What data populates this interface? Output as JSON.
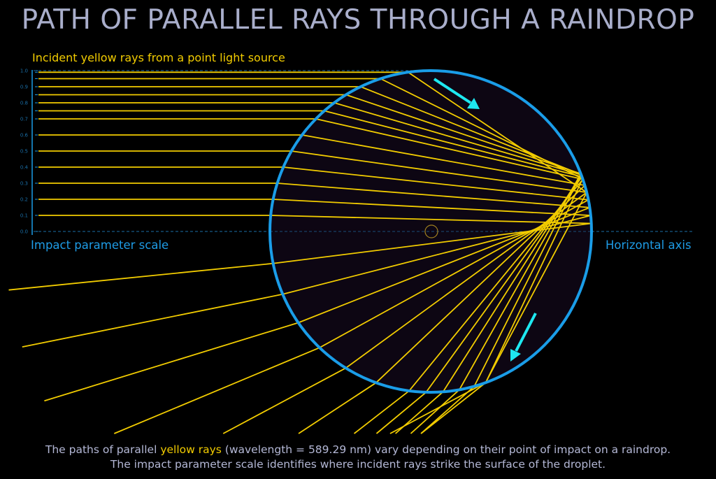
{
  "title": "PATH OF PARALLEL RAYS THROUGH A RAINDROP",
  "subtitle": "Incident yellow rays from a point light source",
  "labels": {
    "impact_scale": "Impact parameter scale",
    "horizontal_axis": "Horizontal axis"
  },
  "scale_ticks": [
    "0.0",
    "0.1",
    "0.2",
    "0.3",
    "0.4",
    "0.5",
    "0.6",
    "0.7",
    "0.8",
    "0.9",
    "1.0"
  ],
  "rays": {
    "impact_parameters": [
      0.1,
      0.2,
      0.3,
      0.4,
      0.5,
      0.6,
      0.7,
      0.75,
      0.8,
      0.85,
      0.9,
      0.95,
      0.99
    ],
    "wavelength": "589.29 nm"
  },
  "caption": {
    "line1_pre": "The paths of parallel ",
    "line1_highlight": "yellow rays",
    "line1_post": " (wavelength = 589.29 nm) vary depending on their point of impact on a raindrop.",
    "line2": "The impact parameter scale identifies where incident rays strike the surface of the droplet."
  },
  "colors": {
    "ray": "#f2cc00",
    "droplet_outline": "#1a9de8",
    "droplet_fill": "#0d0613",
    "arrow": "#1ee8f0",
    "title": "#a9aecb"
  }
}
